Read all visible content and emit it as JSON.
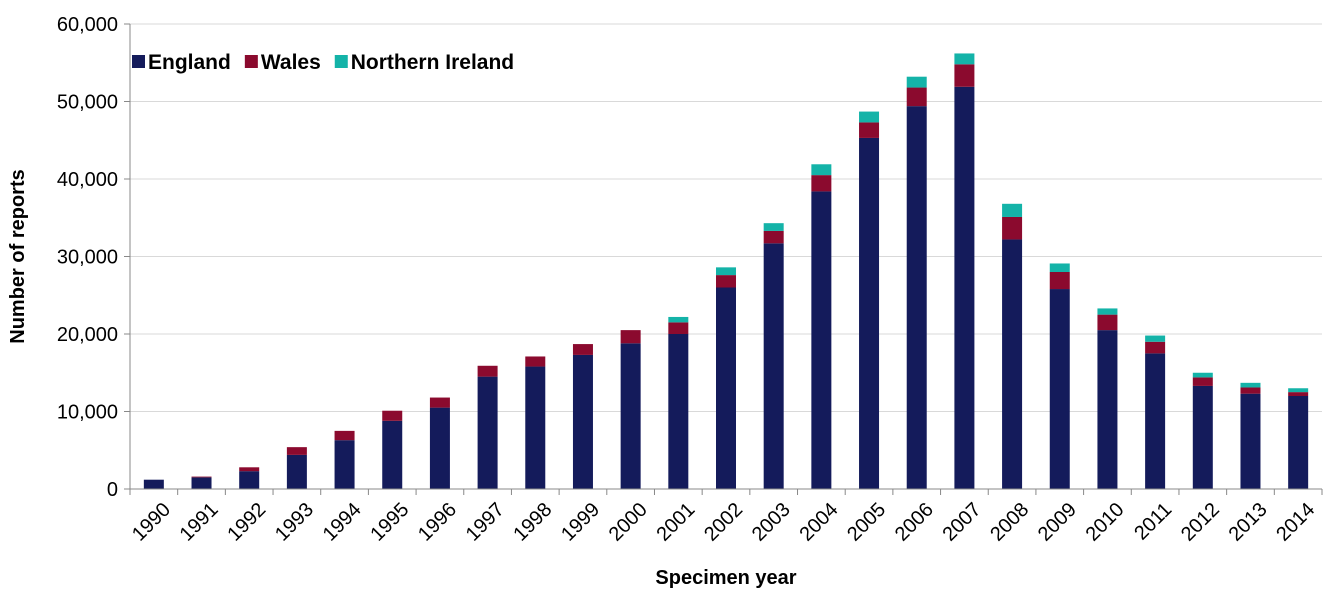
{
  "chart_data": {
    "type": "bar",
    "stacked": true,
    "xlabel": "Specimen year",
    "ylabel": "Number of reports",
    "ylim": [
      0,
      60000
    ],
    "yticks": [
      0,
      10000,
      20000,
      30000,
      40000,
      50000,
      60000
    ],
    "ytick_labels": [
      "0",
      "10,000",
      "20,000",
      "30,000",
      "40,000",
      "50,000",
      "60,000"
    ],
    "grid": "horizontal",
    "legend_position": "top-left",
    "categories": [
      "1990",
      "1991",
      "1992",
      "1993",
      "1994",
      "1995",
      "1996",
      "1997",
      "1998",
      "1999",
      "2000",
      "2001",
      "2002",
      "2003",
      "2004",
      "2005",
      "2006",
      "2007",
      "2008",
      "2009",
      "2010",
      "2011",
      "2012",
      "2013",
      "2014"
    ],
    "series": [
      {
        "name": "England",
        "color": "#141b5b",
        "values": [
          1200,
          1500,
          2300,
          4400,
          6300,
          8800,
          10500,
          14500,
          15800,
          17300,
          18800,
          20000,
          26000,
          31700,
          38400,
          45300,
          49400,
          51900,
          32200,
          25800,
          20500,
          17500,
          13300,
          12300,
          12000
        ]
      },
      {
        "name": "Wales",
        "color": "#8b0a2e",
        "values": [
          0,
          100,
          500,
          1000,
          1200,
          1300,
          1300,
          1400,
          1300,
          1400,
          1700,
          1500,
          1600,
          1600,
          2100,
          2000,
          2400,
          2900,
          2900,
          2200,
          2000,
          1500,
          1100,
          800,
          500
        ]
      },
      {
        "name": "Northern Ireland",
        "color": "#14b3a8",
        "values": [
          0,
          0,
          0,
          0,
          0,
          0,
          0,
          0,
          0,
          0,
          0,
          700,
          1000,
          1000,
          1400,
          1400,
          1400,
          1400,
          1700,
          1100,
          800,
          800,
          600,
          600,
          500
        ]
      }
    ]
  }
}
